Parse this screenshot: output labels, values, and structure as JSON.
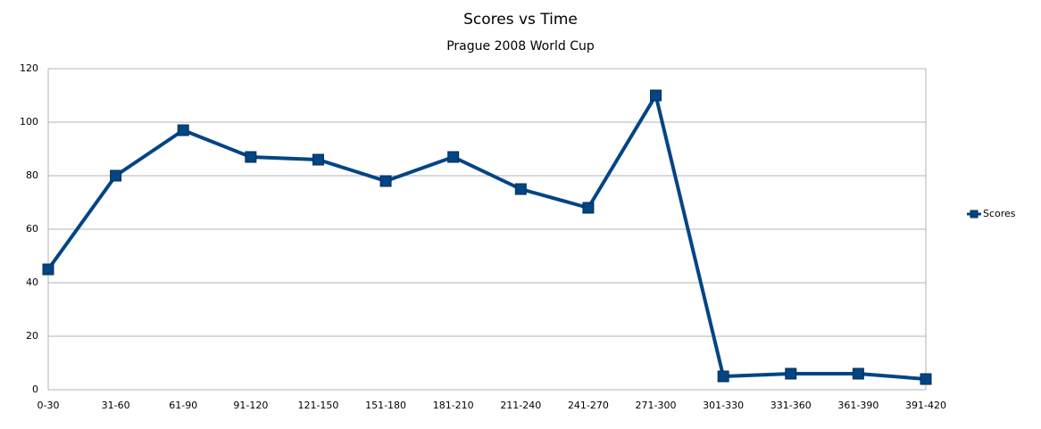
{
  "chart_data": {
    "type": "line",
    "title": "Scores vs Time",
    "subtitle": "Prague 2008 World Cup",
    "categories": [
      "0-30",
      "31-60",
      "61-90",
      "91-120",
      "121-150",
      "151-180",
      "181-210",
      "211-240",
      "241-270",
      "271-300",
      "301-330",
      "331-360",
      "361-390",
      "391-420"
    ],
    "series": [
      {
        "name": "Scores",
        "color": "#004586",
        "values": [
          45,
          80,
          97,
          87,
          86,
          78,
          87,
          75,
          68,
          110,
          5,
          6,
          6,
          4
        ]
      }
    ],
    "ylim": [
      0,
      120
    ],
    "yticks": [
      0,
      20,
      40,
      60,
      80,
      100,
      120
    ],
    "grid": true,
    "legend": "right"
  }
}
